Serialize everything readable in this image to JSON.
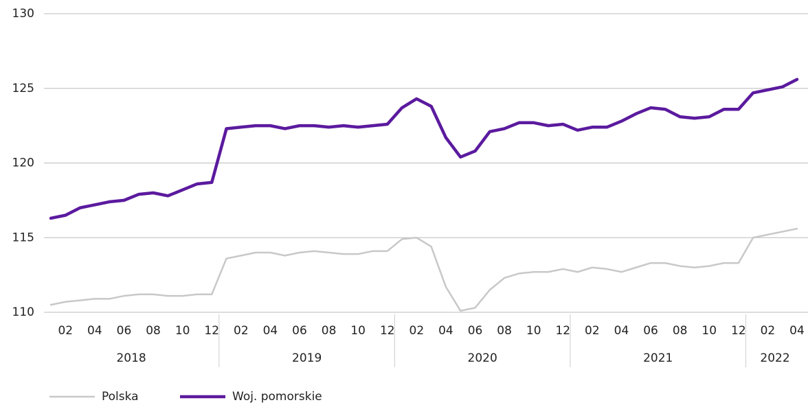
{
  "chart_data": {
    "type": "line",
    "categories": [
      null,
      "02",
      null,
      "04",
      null,
      "06",
      null,
      "08",
      null,
      "10",
      null,
      "12",
      null,
      "02",
      null,
      "04",
      null,
      "06",
      null,
      "08",
      null,
      "10",
      null,
      "12",
      null,
      "02",
      null,
      "04",
      null,
      "06",
      null,
      "08",
      null,
      "10",
      null,
      "12",
      null,
      "02",
      null,
      "04",
      null,
      "06",
      null,
      "08",
      null,
      "10",
      null,
      "12",
      null,
      "02",
      null,
      "04"
    ],
    "groups": [
      "2018",
      "2019",
      "2020",
      "2021",
      "2022"
    ],
    "series": [
      {
        "name": "Polska",
        "color": "#c8c8c8",
        "values": [
          110.5,
          110.7,
          110.8,
          110.9,
          110.9,
          111.1,
          111.2,
          111.2,
          111.1,
          111.1,
          111.2,
          111.2,
          113.6,
          113.8,
          114.0,
          114.0,
          113.8,
          114.0,
          114.1,
          114.0,
          113.9,
          113.9,
          114.1,
          114.1,
          114.9,
          115.0,
          114.4,
          111.7,
          110.1,
          110.3,
          111.5,
          112.3,
          112.6,
          112.7,
          112.7,
          112.9,
          112.7,
          113.0,
          112.9,
          112.7,
          113.0,
          113.3,
          113.3,
          113.1,
          113.0,
          113.1,
          113.3,
          113.3,
          115.0,
          115.2,
          115.4,
          115.6
        ]
      },
      {
        "name": "Woj. pomorskie",
        "color": "#5b1a9e",
        "values": [
          116.3,
          116.5,
          117.0,
          117.2,
          117.4,
          117.5,
          117.9,
          118.0,
          117.8,
          118.2,
          118.6,
          118.7,
          122.3,
          122.4,
          122.5,
          122.5,
          122.3,
          122.5,
          122.5,
          122.4,
          122.5,
          122.4,
          122.5,
          122.6,
          123.7,
          124.3,
          123.8,
          121.7,
          120.4,
          120.8,
          122.1,
          122.3,
          122.7,
          122.7,
          122.5,
          122.6,
          122.2,
          122.4,
          122.4,
          122.8,
          123.3,
          123.7,
          123.6,
          123.1,
          123.0,
          123.1,
          123.6,
          123.6,
          124.7,
          124.9,
          125.1,
          125.6
        ]
      }
    ],
    "ylim": [
      110,
      130
    ],
    "yticks": [
      110,
      115,
      120,
      125,
      130
    ],
    "grid": true
  }
}
